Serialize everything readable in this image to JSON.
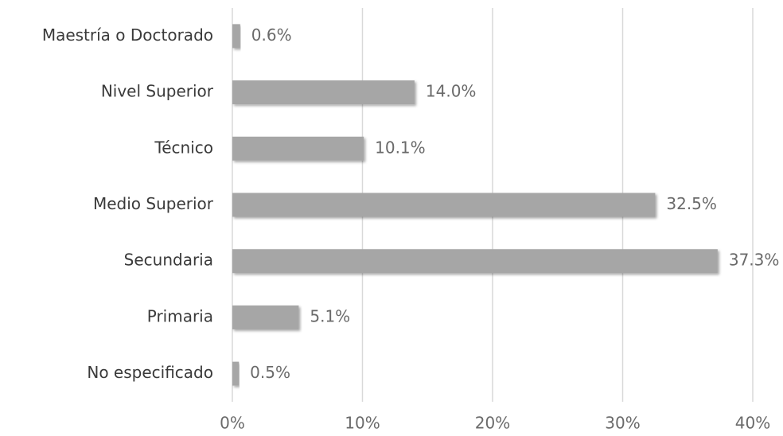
{
  "chart_data": {
    "type": "bar",
    "orientation": "horizontal",
    "categories": [
      "Maestría o Doctorado",
      "Nivel Superior",
      "Técnico",
      "Medio Superior",
      "Secundaria",
      "Primaria",
      "No especificado"
    ],
    "values": [
      0.6,
      14.0,
      10.1,
      32.5,
      37.3,
      5.1,
      0.5
    ],
    "value_labels": [
      "0.6%",
      "14.0%",
      "10.1%",
      "32.5%",
      "37.3%",
      "5.1%",
      "0.5%"
    ],
    "color": "#a6a6a6",
    "xlim": [
      0,
      40
    ],
    "xticks": [
      {
        "value": 0,
        "label": "0%"
      },
      {
        "value": 10,
        "label": "10%"
      },
      {
        "value": 20,
        "label": "20%"
      },
      {
        "value": 30,
        "label": "30%"
      },
      {
        "value": 40,
        "label": "40%"
      }
    ],
    "grid": true
  }
}
